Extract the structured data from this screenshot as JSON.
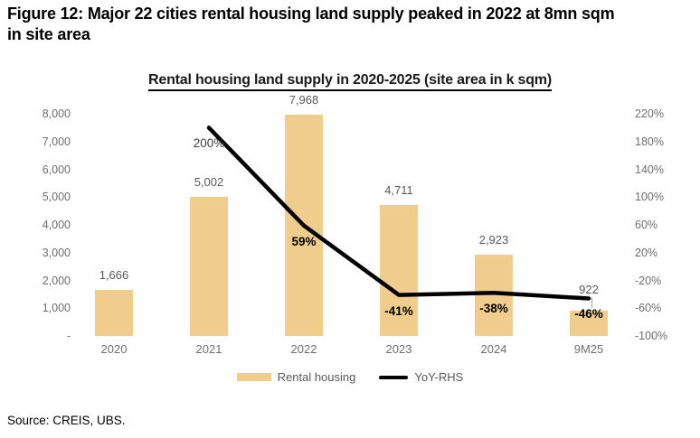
{
  "figure_title": {
    "line1": "Figure 12: Major 22 cities rental housing land supply peaked in 2022 at 8mn sqm",
    "line2": "in site area"
  },
  "source": "Source: CREIS, UBS.",
  "colors": {
    "bar": "#F0CD8C",
    "line": "#000000",
    "value_label": "#595959",
    "tick_label": "#6e6e6e"
  },
  "chart_data": {
    "type": "combo",
    "title": "Rental housing land supply in 2020-2025 (site area in k sqm)",
    "categories": [
      "2020",
      "2021",
      "2022",
      "2023",
      "2024",
      "9M25"
    ],
    "series": [
      {
        "name": "Rental housing",
        "type": "bar",
        "axis": "left",
        "color": "#F0CD8C",
        "values": [
          1666,
          5002,
          7968,
          4711,
          2923,
          922
        ],
        "labels": [
          "1,666",
          "5,002",
          "7,968",
          "4,711",
          "2,923",
          "922"
        ]
      },
      {
        "name": "YoY-RHS",
        "type": "line",
        "axis": "right",
        "color": "#000000",
        "values": [
          null,
          200,
          59,
          -41,
          -38,
          -46
        ],
        "labels": [
          null,
          "200%",
          "59%",
          "-41%",
          "-38%",
          "-46%"
        ]
      }
    ],
    "left_axis": {
      "min": 0,
      "max": 8000,
      "ticks": [
        "8,000",
        "7,000",
        "6,000",
        "5,000",
        "4,000",
        "3,000",
        "2,000",
        "1,000",
        "-"
      ]
    },
    "right_axis": {
      "min": -100,
      "max": 220,
      "ticks": [
        "220%",
        "180%",
        "140%",
        "100%",
        "60%",
        "20%",
        "-20%",
        "-60%",
        "-100%"
      ]
    },
    "legend": {
      "position": "bottom",
      "items": [
        "Rental housing",
        "YoY-RHS"
      ]
    },
    "grid": false
  }
}
